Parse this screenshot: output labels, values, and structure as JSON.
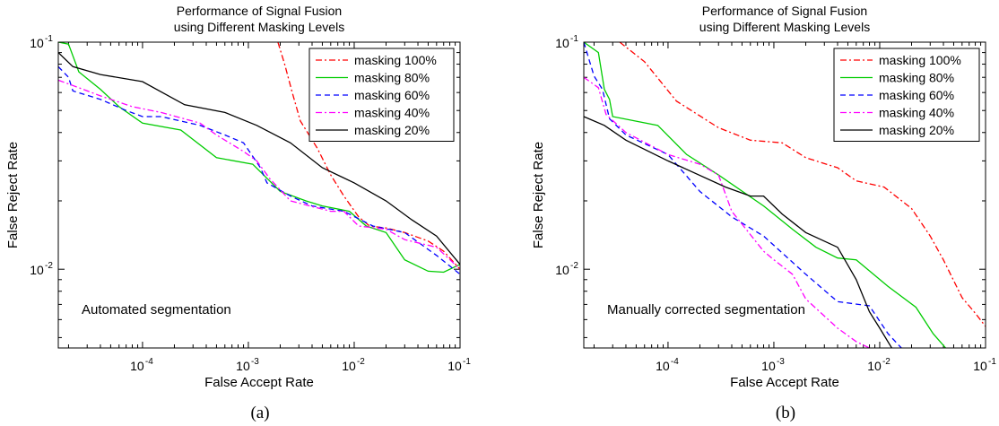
{
  "chart_data": [
    {
      "type": "line",
      "title": "Performance of Signal Fusion",
      "subtitle": "using Different Masking Levels",
      "xlabel": "False Accept Rate",
      "ylabel": "False Reject Rate",
      "xscale": "log",
      "yscale": "log",
      "xlim": [
        1.6e-05,
        0.1
      ],
      "ylim": [
        0.0045,
        0.1
      ],
      "x_ticks": [
        {
          "base": "10",
          "exp": "-4"
        },
        {
          "base": "10",
          "exp": "-3"
        },
        {
          "base": "10",
          "exp": "-2"
        },
        {
          "base": "10",
          "exp": "-1"
        }
      ],
      "y_ticks": [
        {
          "base": "10",
          "exp": "-2"
        },
        {
          "base": "10",
          "exp": "-1"
        }
      ],
      "grid": false,
      "legend_position": "top-right",
      "annotation": "Automated segmentation",
      "caption": "(a)",
      "series": [
        {
          "name": "masking 100%",
          "color": "#ff0000",
          "dash": "dashdot",
          "points": [
            [
              0.0019,
              0.1
            ],
            [
              0.0022,
              0.08
            ],
            [
              0.0026,
              0.06
            ],
            [
              0.0031,
              0.045
            ],
            [
              0.0045,
              0.034
            ],
            [
              0.006,
              0.026
            ],
            [
              0.008,
              0.021
            ],
            [
              0.011,
              0.017
            ],
            [
              0.014,
              0.0155
            ],
            [
              0.02,
              0.0152
            ],
            [
              0.03,
              0.0145
            ],
            [
              0.05,
              0.0133
            ],
            [
              0.07,
              0.012
            ],
            [
              0.1,
              0.01
            ]
          ]
        },
        {
          "name": "masking 80%",
          "color": "#00cc00",
          "dash": "solid",
          "points": [
            [
              1.6e-05,
              0.1
            ],
            [
              2e-05,
              0.098
            ],
            [
              2.5e-05,
              0.074
            ],
            [
              4e-05,
              0.062
            ],
            [
              6e-05,
              0.052
            ],
            [
              0.0001,
              0.044
            ],
            [
              0.00023,
              0.041
            ],
            [
              0.0005,
              0.031
            ],
            [
              0.0011,
              0.029
            ],
            [
              0.002,
              0.022
            ],
            [
              0.0035,
              0.02
            ],
            [
              0.005,
              0.019
            ],
            [
              0.009,
              0.018
            ],
            [
              0.013,
              0.0155
            ],
            [
              0.02,
              0.0145
            ],
            [
              0.03,
              0.011
            ],
            [
              0.05,
              0.0098
            ],
            [
              0.07,
              0.0097
            ],
            [
              0.1,
              0.0105
            ]
          ]
        },
        {
          "name": "masking 60%",
          "color": "#0000ff",
          "dash": "dashed",
          "points": [
            [
              1.6e-05,
              0.078
            ],
            [
              2e-05,
              0.07
            ],
            [
              2.2e-05,
              0.061
            ],
            [
              4e-05,
              0.056
            ],
            [
              7e-05,
              0.05
            ],
            [
              0.0001,
              0.047
            ],
            [
              0.00015,
              0.047
            ],
            [
              0.00035,
              0.043
            ],
            [
              0.0006,
              0.039
            ],
            [
              0.0009,
              0.036
            ],
            [
              0.0013,
              0.028
            ],
            [
              0.0015,
              0.024
            ],
            [
              0.0025,
              0.021
            ],
            [
              0.004,
              0.019
            ],
            [
              0.008,
              0.018
            ],
            [
              0.015,
              0.0155
            ],
            [
              0.03,
              0.0145
            ],
            [
              0.06,
              0.0115
            ],
            [
              0.1,
              0.0095
            ]
          ]
        },
        {
          "name": "masking 40%",
          "color": "#ff00ff",
          "dash": "dashdot",
          "points": [
            [
              1.6e-05,
              0.068
            ],
            [
              2.5e-05,
              0.063
            ],
            [
              4e-05,
              0.058
            ],
            [
              8e-05,
              0.052
            ],
            [
              0.00015,
              0.049
            ],
            [
              0.00035,
              0.044
            ],
            [
              0.0005,
              0.039
            ],
            [
              0.0009,
              0.033
            ],
            [
              0.0012,
              0.03
            ],
            [
              0.0016,
              0.025
            ],
            [
              0.0025,
              0.02
            ],
            [
              0.0038,
              0.019
            ],
            [
              0.006,
              0.018
            ],
            [
              0.008,
              0.018
            ],
            [
              0.011,
              0.0155
            ],
            [
              0.02,
              0.015
            ],
            [
              0.03,
              0.0135
            ],
            [
              0.06,
              0.0125
            ],
            [
              0.1,
              0.01
            ]
          ]
        },
        {
          "name": "masking 20%",
          "color": "#000000",
          "dash": "solid",
          "points": [
            [
              1.6e-05,
              0.09
            ],
            [
              2.2e-05,
              0.078
            ],
            [
              4e-05,
              0.072
            ],
            [
              0.0001,
              0.067
            ],
            [
              0.00025,
              0.053
            ],
            [
              0.0006,
              0.049
            ],
            [
              0.0012,
              0.043
            ],
            [
              0.0025,
              0.036
            ],
            [
              0.005,
              0.028
            ],
            [
              0.01,
              0.024
            ],
            [
              0.02,
              0.02
            ],
            [
              0.035,
              0.0165
            ],
            [
              0.06,
              0.014
            ],
            [
              0.1,
              0.0105
            ]
          ]
        }
      ]
    },
    {
      "type": "line",
      "title": "Performance of Signal Fusion",
      "subtitle": "using Different Masking Levels",
      "xlabel": "False Accept Rate",
      "ylabel": "False Reject Rate",
      "xscale": "log",
      "yscale": "log",
      "xlim": [
        1.6e-05,
        0.1
      ],
      "ylim": [
        0.0045,
        0.1
      ],
      "x_ticks": [
        {
          "base": "10",
          "exp": "-4"
        },
        {
          "base": "10",
          "exp": "-3"
        },
        {
          "base": "10",
          "exp": "-2"
        },
        {
          "base": "10",
          "exp": "-1"
        }
      ],
      "y_ticks": [
        {
          "base": "10",
          "exp": "-2"
        },
        {
          "base": "10",
          "exp": "-1"
        }
      ],
      "grid": false,
      "legend_position": "top-right",
      "annotation": "Manually corrected segmentation",
      "caption": "(b)",
      "series": [
        {
          "name": "masking 100%",
          "color": "#ff0000",
          "dash": "dashdot",
          "points": [
            [
              3.5e-05,
              0.1
            ],
            [
              6e-05,
              0.082
            ],
            [
              0.00012,
              0.055
            ],
            [
              0.0003,
              0.042
            ],
            [
              0.0006,
              0.037
            ],
            [
              0.0012,
              0.036
            ],
            [
              0.002,
              0.031
            ],
            [
              0.004,
              0.028
            ],
            [
              0.006,
              0.0245
            ],
            [
              0.011,
              0.023
            ],
            [
              0.02,
              0.0185
            ],
            [
              0.03,
              0.014
            ],
            [
              0.04,
              0.011
            ],
            [
              0.06,
              0.0075
            ],
            [
              0.08,
              0.0064
            ],
            [
              0.1,
              0.0056
            ]
          ]
        },
        {
          "name": "masking 80%",
          "color": "#00cc00",
          "dash": "solid",
          "points": [
            [
              1.6e-05,
              0.1
            ],
            [
              2.2e-05,
              0.09
            ],
            [
              2.5e-05,
              0.062
            ],
            [
              2.8e-05,
              0.056
            ],
            [
              3e-05,
              0.047
            ],
            [
              8e-05,
              0.043
            ],
            [
              0.00015,
              0.032
            ],
            [
              0.0003,
              0.026
            ],
            [
              0.0008,
              0.019
            ],
            [
              0.0015,
              0.015
            ],
            [
              0.0025,
              0.0125
            ],
            [
              0.004,
              0.0112
            ],
            [
              0.006,
              0.011
            ],
            [
              0.012,
              0.0084
            ],
            [
              0.022,
              0.0068
            ],
            [
              0.032,
              0.0052
            ],
            [
              0.042,
              0.0045
            ]
          ]
        },
        {
          "name": "masking 60%",
          "color": "#0000ff",
          "dash": "dashed",
          "points": [
            [
              1.6e-05,
              0.1
            ],
            [
              2e-05,
              0.071
            ],
            [
              2.4e-05,
              0.062
            ],
            [
              2.8e-05,
              0.046
            ],
            [
              4e-05,
              0.039
            ],
            [
              0.0001,
              0.032
            ],
            [
              0.0002,
              0.022
            ],
            [
              0.0004,
              0.017
            ],
            [
              0.0008,
              0.014
            ],
            [
              0.002,
              0.0095
            ],
            [
              0.004,
              0.0072
            ],
            [
              0.008,
              0.0069
            ],
            [
              0.012,
              0.0052
            ],
            [
              0.016,
              0.0045
            ]
          ]
        },
        {
          "name": "masking 40%",
          "color": "#ff00ff",
          "dash": "dashdot",
          "points": [
            [
              1.6e-05,
              0.07
            ],
            [
              2.2e-05,
              0.063
            ],
            [
              2.6e-05,
              0.048
            ],
            [
              4e-05,
              0.04
            ],
            [
              0.0001,
              0.032
            ],
            [
              0.0002,
              0.029
            ],
            [
              0.0003,
              0.026
            ],
            [
              0.0004,
              0.018
            ],
            [
              0.0008,
              0.012
            ],
            [
              0.001,
              0.011
            ],
            [
              0.0015,
              0.0095
            ],
            [
              0.002,
              0.0074
            ],
            [
              0.004,
              0.0055
            ],
            [
              0.006,
              0.0048
            ],
            [
              0.008,
              0.0045
            ]
          ]
        },
        {
          "name": "masking 20%",
          "color": "#000000",
          "dash": "solid",
          "points": [
            [
              1.6e-05,
              0.047
            ],
            [
              2.5e-05,
              0.043
            ],
            [
              4e-05,
              0.037
            ],
            [
              0.0001,
              0.03
            ],
            [
              0.00035,
              0.023
            ],
            [
              0.0006,
              0.021
            ],
            [
              0.0008,
              0.021
            ],
            [
              0.0012,
              0.0175
            ],
            [
              0.002,
              0.0145
            ],
            [
              0.004,
              0.0125
            ],
            [
              0.006,
              0.009
            ],
            [
              0.008,
              0.0065
            ],
            [
              0.01,
              0.0055
            ],
            [
              0.013,
              0.0045
            ]
          ]
        }
      ]
    }
  ]
}
